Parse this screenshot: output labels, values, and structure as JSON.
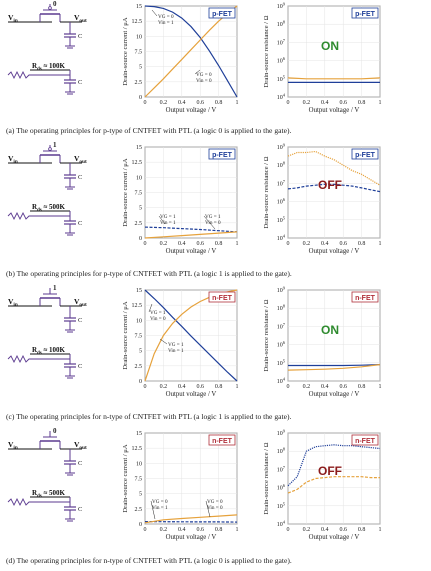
{
  "colors": {
    "blue": "#1f3f99",
    "orange": "#e6a23c",
    "purple": "#5b3a8f",
    "green": "#2e8b2e",
    "red": "#8b1a1a"
  },
  "labels": {
    "ylabel_current": "Drain-source current / μA",
    "ylabel_resistance": "Drain-source resistance / Ω",
    "xlabel": "Output voltage / V"
  },
  "panels": [
    {
      "id": "a",
      "gate_bit": "0",
      "vin": "Vin",
      "vout": "Vout",
      "cap": "C",
      "rds": "Rds ≈ 100K",
      "fet_tag": "p-FET",
      "state": "ON",
      "legend": [
        [
          "VG = 0",
          "Vin = 1"
        ],
        [
          "VG = 0",
          "Vin = 0"
        ]
      ],
      "caption": "(a) The operating principles for p-type of CNTFET with PTL (a logic 0 is applied to the gate)."
    },
    {
      "id": "b",
      "gate_bit": "1",
      "vin": "Vin",
      "vout": "Vout",
      "cap": "C",
      "rds": "Rds ≈ 500K",
      "fet_tag": "p-FET",
      "state": "OFF",
      "legend": [
        [
          "VG = 1",
          "Vin = 1"
        ],
        [
          "VG = 1",
          "Vin = 0"
        ]
      ],
      "caption": "(b) The operating principles for p-type of CNTFET with PTL (a logic 1 is applied to the gate)."
    },
    {
      "id": "c",
      "gate_bit": "1",
      "vin": "Vin",
      "vout": "Vout",
      "cap": "C",
      "rds": "Rds ≈ 100K",
      "fet_tag": "n-FET",
      "state": "ON",
      "legend": [
        [
          "VG = 1",
          "Vin = 0"
        ],
        [
          "VG = 1",
          "Vin = 1"
        ]
      ],
      "caption": "(c) The operating principles for n-type of CNTFET with PTL (a logic 1 is applied to the gate)."
    },
    {
      "id": "d",
      "gate_bit": "0",
      "vin": "Vin",
      "vout": "Vout",
      "cap": "C",
      "rds": "Rds ≈ 500K",
      "fet_tag": "n-FET",
      "state": "OFF",
      "legend": [
        [
          "VG = 0",
          "Vin = 1"
        ],
        [
          "VG = 0",
          "Vin = 0"
        ]
      ],
      "caption": "(d) The operating principles for n-type of CNTFET with PTL (a logic 0 is applied to the gate)."
    }
  ],
  "chart_data": [
    {
      "type": "line",
      "panel": "a",
      "title": "p-FET",
      "xlabel": "Output voltage / V",
      "ylabel": "Drain-source current / μA",
      "xlim": [
        0,
        1
      ],
      "ylim": [
        0,
        15
      ],
      "xticks": [
        "0",
        "0.2",
        "0.4",
        "0.6",
        "0.8",
        "1"
      ],
      "yticks": [
        "0",
        "2.5",
        "5",
        "7.5",
        "10",
        "12.5",
        "15"
      ],
      "series": [
        {
          "color": "#1f3f99",
          "x": [
            0,
            0.1,
            0.2,
            0.3,
            0.4,
            0.5,
            0.6,
            0.7,
            0.8,
            0.9,
            1.0
          ],
          "y": [
            15,
            14.9,
            14.6,
            14.0,
            13.0,
            11.6,
            9.8,
            7.6,
            5.2,
            2.6,
            0
          ]
        },
        {
          "color": "#e6a23c",
          "x": [
            0,
            0.1,
            0.2,
            0.3,
            0.4,
            0.5,
            0.6,
            0.7,
            0.8,
            0.9,
            1.0
          ],
          "y": [
            0,
            1.5,
            3.0,
            4.6,
            6.2,
            7.8,
            9.4,
            11.0,
            12.5,
            13.8,
            15
          ]
        }
      ]
    },
    {
      "type": "line",
      "panel": "a",
      "title": "p-FET",
      "xlabel": "Output voltage / V",
      "ylabel": "Drain-source resistance / Ω",
      "xlim": [
        0,
        1
      ],
      "ylim_log10": [
        4,
        9
      ],
      "xticks": [
        "0",
        "0.2",
        "0.4",
        "0.6",
        "0.8",
        "1"
      ],
      "yticks": [
        "10^4",
        "10^5",
        "10^6",
        "10^7",
        "10^8",
        "10^9"
      ],
      "series": [
        {
          "color": "#1f3f99",
          "x": [
            0,
            0.2,
            0.4,
            0.6,
            0.8,
            1.0
          ],
          "y_log10": [
            4.8,
            4.8,
            4.8,
            4.8,
            4.8,
            4.8
          ]
        },
        {
          "color": "#e6a23c",
          "x": [
            0,
            0.2,
            0.4,
            0.6,
            0.8,
            1.0
          ],
          "y_log10": [
            5.05,
            5.0,
            5.0,
            5.0,
            5.0,
            5.05
          ]
        }
      ]
    },
    {
      "type": "line",
      "panel": "b",
      "title": "p-FET",
      "xlabel": "Output voltage / V",
      "ylabel": "Drain-source current / μA",
      "xlim": [
        0,
        1
      ],
      "ylim": [
        0,
        15
      ],
      "xticks": [
        "0",
        "0.2",
        "0.4",
        "0.6",
        "0.8",
        "1"
      ],
      "yticks": [
        "0",
        "2.5",
        "5",
        "7.5",
        "10",
        "12.5",
        "15"
      ],
      "series": [
        {
          "color": "#1f3f99",
          "dashed": true,
          "x": [
            0,
            0.2,
            0.4,
            0.6,
            0.8,
            1.0
          ],
          "y": [
            1.8,
            1.7,
            1.55,
            1.4,
            1.2,
            1.0
          ]
        },
        {
          "color": "#e6a23c",
          "x": [
            0,
            0.2,
            0.4,
            0.6,
            0.8,
            1.0
          ],
          "y": [
            0,
            0.2,
            0.4,
            0.6,
            0.8,
            1.0
          ]
        }
      ]
    },
    {
      "type": "line",
      "panel": "b",
      "title": "p-FET",
      "xlabel": "Output voltage / V",
      "ylabel": "Drain-source resistance / Ω",
      "xlim": [
        0,
        1
      ],
      "ylim_log10": [
        4,
        9
      ],
      "xticks": [
        "0",
        "0.2",
        "0.4",
        "0.6",
        "0.8",
        "1"
      ],
      "yticks": [
        "10^4",
        "10^5",
        "10^6",
        "10^7",
        "10^8",
        "10^9"
      ],
      "series": [
        {
          "color": "#e6a23c",
          "dotted": true,
          "x": [
            0,
            0.1,
            0.2,
            0.3,
            0.4,
            0.5,
            0.6,
            0.7,
            0.8,
            0.9,
            1.0
          ],
          "y_log10": [
            8.5,
            8.7,
            8.7,
            8.75,
            8.5,
            8.3,
            8.0,
            7.7,
            7.5,
            7.2,
            6.9
          ]
        },
        {
          "color": "#1f3f99",
          "dashed": true,
          "x": [
            0,
            0.1,
            0.2,
            0.3,
            0.4,
            0.5,
            0.6,
            0.7,
            0.8,
            0.9,
            1.0
          ],
          "y_log10": [
            6.7,
            6.75,
            6.85,
            6.9,
            6.95,
            6.95,
            6.9,
            6.85,
            6.75,
            6.65,
            6.55
          ]
        }
      ]
    },
    {
      "type": "line",
      "panel": "c",
      "title": "n-FET",
      "xlabel": "Output voltage / V",
      "ylabel": "Drain-source current / μA",
      "xlim": [
        0,
        1
      ],
      "ylim": [
        0,
        15
      ],
      "xticks": [
        "0",
        "0.2",
        "0.4",
        "0.6",
        "0.8",
        "1"
      ],
      "yticks": [
        "0",
        "2.5",
        "5",
        "7.5",
        "10",
        "12.5",
        "15"
      ],
      "series": [
        {
          "color": "#1f3f99",
          "x": [
            0,
            0.1,
            0.2,
            0.3,
            0.4,
            0.5,
            0.6,
            0.7,
            0.8,
            0.9,
            1.0
          ],
          "y": [
            15,
            13.6,
            12.1,
            10.5,
            9.0,
            7.4,
            5.9,
            4.4,
            2.9,
            1.4,
            0
          ]
        },
        {
          "color": "#e6a23c",
          "x": [
            0,
            0.1,
            0.2,
            0.3,
            0.4,
            0.5,
            0.6,
            0.7,
            0.8,
            0.9,
            1.0
          ],
          "y": [
            0,
            4.5,
            7.5,
            9.5,
            11.0,
            12.2,
            13.1,
            13.8,
            14.3,
            14.7,
            15
          ]
        }
      ]
    },
    {
      "type": "line",
      "panel": "c",
      "title": "n-FET",
      "xlabel": "Output voltage / V",
      "ylabel": "Drain-source resistance / Ω",
      "xlim": [
        0,
        1
      ],
      "ylim_log10": [
        4,
        9
      ],
      "xticks": [
        "0",
        "0.2",
        "0.4",
        "0.6",
        "0.8",
        "1"
      ],
      "yticks": [
        "10^4",
        "10^5",
        "10^6",
        "10^7",
        "10^8",
        "10^9"
      ],
      "series": [
        {
          "color": "#1f3f99",
          "x": [
            0,
            0.2,
            0.4,
            0.6,
            0.8,
            1.0
          ],
          "y_log10": [
            4.85,
            4.85,
            4.85,
            4.85,
            4.87,
            4.9
          ]
        },
        {
          "color": "#e6a23c",
          "x": [
            0,
            0.2,
            0.4,
            0.6,
            0.8,
            1.0
          ],
          "y_log10": [
            4.6,
            4.62,
            4.65,
            4.7,
            4.78,
            4.9
          ]
        }
      ]
    },
    {
      "type": "line",
      "panel": "d",
      "title": "n-FET",
      "xlabel": "Output voltage / V",
      "ylabel": "Drain-source current / μA",
      "xlim": [
        0,
        1
      ],
      "ylim": [
        0,
        15
      ],
      "xticks": [
        "0",
        "0.2",
        "0.4",
        "0.6",
        "0.8",
        "1"
      ],
      "yticks": [
        "0",
        "2.5",
        "5",
        "7.5",
        "10",
        "12.5",
        "15"
      ],
      "series": [
        {
          "color": "#1f3f99",
          "dashed": true,
          "x": [
            0,
            0.2,
            0.4,
            0.6,
            0.8,
            1.0
          ],
          "y": [
            0.4,
            0.38,
            0.36,
            0.35,
            0.34,
            0.32
          ]
        },
        {
          "color": "#e6a23c",
          "x": [
            0,
            0.2,
            0.4,
            0.6,
            0.8,
            1.0
          ],
          "y": [
            0.2,
            0.7,
            0.9,
            1.1,
            1.3,
            1.5
          ]
        }
      ]
    },
    {
      "type": "line",
      "panel": "d",
      "title": "n-FET",
      "xlabel": "Output voltage / V",
      "ylabel": "Drain-source resistance / Ω",
      "xlim": [
        0,
        1
      ],
      "ylim_log10": [
        4,
        9
      ],
      "xticks": [
        "0",
        "0.2",
        "0.4",
        "0.6",
        "0.8",
        "1"
      ],
      "yticks": [
        "10^4",
        "10^5",
        "10^6",
        "10^7",
        "10^8",
        "10^9"
      ],
      "series": [
        {
          "color": "#1f3f99",
          "dotted": true,
          "x": [
            0,
            0.1,
            0.2,
            0.3,
            0.4,
            0.5,
            0.6,
            0.7,
            0.8,
            0.9,
            1.0
          ],
          "y_log10": [
            6.1,
            6.6,
            8.0,
            8.25,
            8.3,
            8.35,
            8.3,
            8.3,
            8.25,
            8.2,
            8.15
          ]
        },
        {
          "color": "#e6a23c",
          "dashed": true,
          "x": [
            0,
            0.1,
            0.2,
            0.3,
            0.4,
            0.5,
            0.6,
            0.7,
            0.8,
            0.9,
            1.0
          ],
          "y_log10": [
            5.7,
            5.9,
            6.3,
            6.5,
            6.55,
            6.6,
            6.6,
            6.6,
            6.6,
            6.55,
            6.55
          ]
        }
      ]
    }
  ]
}
